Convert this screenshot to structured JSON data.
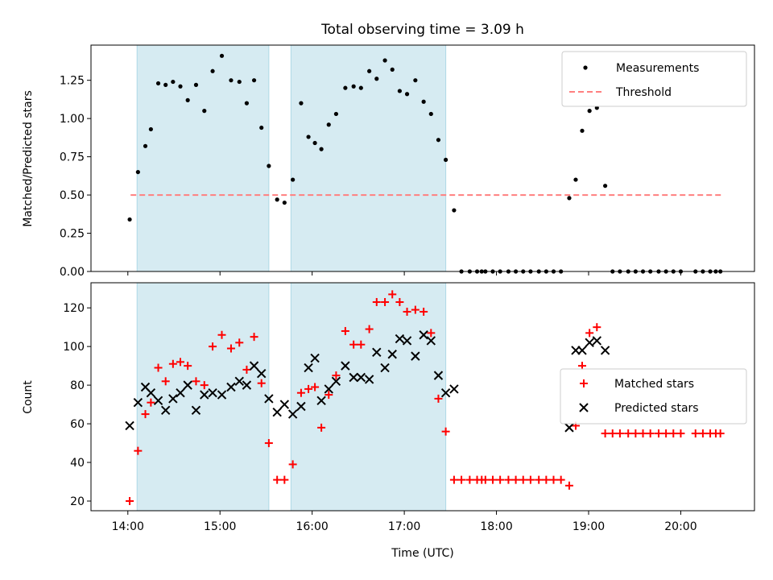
{
  "chart_data": [
    {
      "panel": "top",
      "type": "scatter",
      "title": "Total observing time = 3.09 h",
      "ylabel": "Matched/Predicted stars",
      "xlabel": "",
      "xlim": [
        13.6,
        20.8
      ],
      "ylim": [
        0,
        1.48
      ],
      "yticks": [
        "0.00",
        "0.25",
        "0.50",
        "0.75",
        "1.00",
        "1.25"
      ],
      "shaded_intervals": [
        [
          14.1,
          15.53
        ],
        [
          15.77,
          17.45
        ]
      ],
      "threshold": {
        "name": "Threshold",
        "value": 0.5,
        "x_range": [
          14.03,
          20.47
        ]
      },
      "legend": [
        "Measurements",
        "Threshold"
      ],
      "legend_position": "upper right",
      "series": [
        {
          "name": "Measurements",
          "x": [
            14.02,
            14.11,
            14.19,
            14.25,
            14.33,
            14.41,
            14.49,
            14.57,
            14.65,
            14.74,
            14.83,
            14.92,
            15.02,
            15.12,
            15.21,
            15.29,
            15.37,
            15.45,
            15.53,
            15.62,
            15.7,
            15.79,
            15.88,
            15.96,
            16.03,
            16.1,
            16.18,
            16.26,
            16.36,
            16.45,
            16.53,
            16.62,
            16.7,
            16.79,
            16.87,
            16.95,
            17.03,
            17.12,
            17.21,
            17.29,
            17.37,
            17.45,
            17.54,
            17.62,
            17.71,
            17.79,
            17.84,
            17.88,
            17.96,
            18.04,
            18.13,
            18.21,
            18.29,
            18.37,
            18.46,
            18.54,
            18.62,
            18.7,
            18.79,
            18.86,
            18.93,
            19.01,
            19.09,
            19.18,
            19.26,
            19.34,
            19.43,
            19.51,
            19.59,
            19.67,
            19.76,
            19.84,
            19.92,
            20.0,
            20.16,
            20.24,
            20.32,
            20.38,
            20.43
          ],
          "y": [
            0.34,
            0.65,
            0.82,
            0.93,
            1.23,
            1.22,
            1.24,
            1.21,
            1.12,
            1.22,
            1.05,
            1.31,
            1.41,
            1.25,
            1.24,
            1.1,
            1.25,
            0.94,
            0.69,
            0.47,
            0.45,
            0.6,
            1.1,
            0.88,
            0.84,
            0.8,
            0.96,
            1.03,
            1.2,
            1.21,
            1.2,
            1.31,
            1.26,
            1.38,
            1.32,
            1.18,
            1.16,
            1.25,
            1.11,
            1.03,
            0.86,
            0.73,
            0.4,
            0.0,
            0.0,
            0.0,
            0.0,
            0.0,
            0.0,
            0.0,
            0.0,
            0.0,
            0.0,
            0.0,
            0.0,
            0.0,
            0.0,
            0.0,
            0.48,
            0.6,
            0.92,
            1.05,
            1.07,
            0.56,
            0.0,
            0.0,
            0.0,
            0.0,
            0.0,
            0.0,
            0.0,
            0.0,
            0.0,
            0.0,
            0.0,
            0.0,
            0.0,
            0.0,
            0.0
          ]
        }
      ]
    },
    {
      "panel": "bottom",
      "type": "scatter",
      "ylabel": "Count",
      "xlabel": "Time (UTC)",
      "xlim": [
        13.6,
        20.8
      ],
      "ylim": [
        15,
        133
      ],
      "yticks": [
        "20",
        "40",
        "60",
        "80",
        "100",
        "120"
      ],
      "xticks": [
        {
          "value": 14,
          "label": "14:00"
        },
        {
          "value": 15,
          "label": "15:00"
        },
        {
          "value": 16,
          "label": "16:00"
        },
        {
          "value": 17,
          "label": "17:00"
        },
        {
          "value": 18,
          "label": "18:00"
        },
        {
          "value": 19,
          "label": "19:00"
        },
        {
          "value": 20,
          "label": "20:00"
        }
      ],
      "shaded_intervals": [
        [
          14.1,
          15.53
        ],
        [
          15.77,
          17.45
        ]
      ],
      "legend": [
        "Matched stars",
        "Predicted stars"
      ],
      "legend_position": "center right",
      "series": [
        {
          "name": "Matched stars",
          "x": [
            14.02,
            14.11,
            14.19,
            14.25,
            14.33,
            14.41,
            14.49,
            14.57,
            14.65,
            14.74,
            14.83,
            14.92,
            15.02,
            15.12,
            15.21,
            15.29,
            15.37,
            15.45,
            15.53,
            15.62,
            15.7,
            15.79,
            15.88,
            15.96,
            16.03,
            16.1,
            16.18,
            16.26,
            16.36,
            16.45,
            16.53,
            16.62,
            16.7,
            16.79,
            16.87,
            16.95,
            17.03,
            17.12,
            17.21,
            17.29,
            17.37,
            17.45,
            17.54,
            17.62,
            17.71,
            17.79,
            17.84,
            17.88,
            17.96,
            18.04,
            18.13,
            18.21,
            18.29,
            18.37,
            18.46,
            18.54,
            18.62,
            18.7,
            18.79,
            18.86,
            18.93,
            19.01,
            19.09,
            19.18,
            19.26,
            19.34,
            19.43,
            19.51,
            19.59,
            19.67,
            19.76,
            19.84,
            19.92,
            20.0,
            20.16,
            20.24,
            20.32,
            20.38,
            20.43
          ],
          "y": [
            20,
            46,
            65,
            71,
            89,
            82,
            91,
            92,
            90,
            82,
            80,
            100,
            106,
            99,
            102,
            88,
            105,
            81,
            50,
            31,
            31,
            39,
            76,
            78,
            79,
            58,
            75,
            85,
            108,
            101,
            101,
            109,
            123,
            123,
            127,
            123,
            118,
            119,
            118,
            107,
            73,
            56,
            31,
            31,
            31,
            31,
            31,
            31,
            31,
            31,
            31,
            31,
            31,
            31,
            31,
            31,
            31,
            31,
            28,
            59,
            90,
            107,
            110,
            55,
            55,
            55,
            55,
            55,
            55,
            55,
            55,
            55,
            55,
            55,
            55,
            55,
            55,
            55,
            55
          ]
        },
        {
          "name": "Predicted stars",
          "x": [
            14.02,
            14.11,
            14.19,
            14.25,
            14.33,
            14.41,
            14.49,
            14.57,
            14.65,
            14.74,
            14.83,
            14.92,
            15.02,
            15.12,
            15.21,
            15.29,
            15.37,
            15.45,
            15.53,
            15.62,
            15.7,
            15.79,
            15.88,
            15.96,
            16.03,
            16.1,
            16.18,
            16.26,
            16.36,
            16.45,
            16.53,
            16.62,
            16.7,
            16.79,
            16.87,
            16.95,
            17.03,
            17.12,
            17.21,
            17.29,
            17.37,
            17.45,
            17.54,
            18.79,
            18.86,
            18.93,
            19.01,
            19.09,
            19.18
          ],
          "y": [
            59,
            71,
            79,
            76,
            72,
            67,
            73,
            76,
            80,
            67,
            75,
            76,
            75,
            79,
            82,
            80,
            90,
            86,
            73,
            66,
            70,
            65,
            69,
            89,
            94,
            72,
            78,
            82,
            90,
            84,
            84,
            83,
            97,
            89,
            96,
            104,
            103,
            95,
            106,
            103,
            85,
            76,
            78,
            58,
            98,
            98,
            102,
            103,
            98
          ]
        }
      ]
    }
  ]
}
